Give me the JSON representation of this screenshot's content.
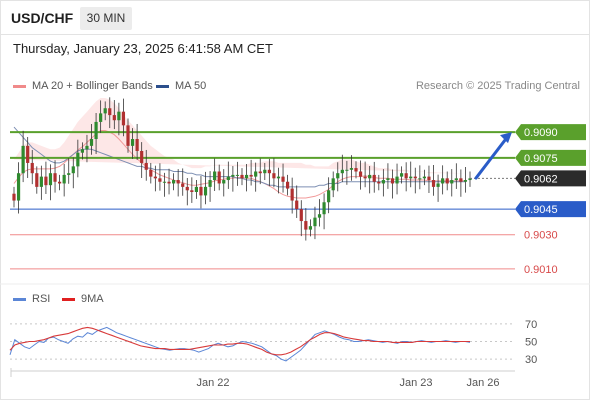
{
  "header": {
    "symbol": "USD/CHF",
    "timeframe": "30 MIN"
  },
  "timestamp": "Thursday, January 23, 2025 6:41:58 AM CET",
  "legend": {
    "ma20": {
      "label": "MA 20 + Bollinger Bands",
      "color": "#f08a8a"
    },
    "ma50": {
      "label": "MA 50",
      "color": "#2c4f8c"
    },
    "research": "Research © 2025 Trading Central"
  },
  "rsi_legend": {
    "rsi": {
      "label": "RSI",
      "color": "#5b86d6"
    },
    "ma": {
      "label": "9MA",
      "color": "#e02020"
    }
  },
  "colors": {
    "green": "#5aa02c",
    "blue": "#2a5cc8",
    "red": "#f08a8a",
    "band": "#fde3e3",
    "bull": "#2f8a2f",
    "bear": "#b03030"
  },
  "chart_data": [
    {
      "type": "candlestick",
      "ylim": [
        0.9,
        0.911
      ],
      "price_tag": "0.9062",
      "levels": [
        {
          "label": "0.9090",
          "value": 0.909,
          "style": "resistance"
        },
        {
          "label": "0.9075",
          "value": 0.9075,
          "style": "resistance"
        },
        {
          "label": "0.9045",
          "value": 0.9045,
          "style": "pivot"
        },
        {
          "label": "0.9030",
          "value": 0.903,
          "style": "support"
        },
        {
          "label": "0.9010",
          "value": 0.901,
          "style": "support"
        }
      ],
      "forecast_arrow": {
        "from": 0.9062,
        "to": 0.909
      },
      "closes": [
        0.905,
        0.9066,
        0.9082,
        0.9072,
        0.9066,
        0.9058,
        0.9064,
        0.9059,
        0.9066,
        0.9061,
        0.906,
        0.9065,
        0.9066,
        0.907,
        0.9078,
        0.908,
        0.9082,
        0.9086,
        0.9096,
        0.9101,
        0.9104,
        0.91,
        0.9097,
        0.9102,
        0.9094,
        0.9082,
        0.9086,
        0.9079,
        0.9072,
        0.9068,
        0.9064,
        0.9063,
        0.9061,
        0.9061,
        0.906,
        0.9062,
        0.906,
        0.9058,
        0.9056,
        0.9055,
        0.9058,
        0.9053,
        0.9058,
        0.9062,
        0.9067,
        0.906,
        0.9062,
        0.9064,
        0.9065,
        0.9065,
        0.9063,
        0.9065,
        0.9064,
        0.9067,
        0.9066,
        0.9068,
        0.9066,
        0.9063,
        0.9064,
        0.9061,
        0.9057,
        0.905,
        0.9045,
        0.9038,
        0.9033,
        0.9035,
        0.904,
        0.9042,
        0.9049,
        0.9056,
        0.9063,
        0.9066,
        0.9068,
        0.9068,
        0.9069,
        0.9067,
        0.9064,
        0.9063,
        0.9065,
        0.9061,
        0.906,
        0.9062,
        0.9063,
        0.906,
        0.9064,
        0.9066,
        0.9063,
        0.9064,
        0.9063,
        0.9063,
        0.9064,
        0.9062,
        0.9058,
        0.906,
        0.9063,
        0.906,
        0.9062,
        0.9063,
        0.9061,
        0.9062,
        0.9063
      ],
      "ma50": [
        0.9093,
        0.909,
        0.9087,
        0.9084,
        0.9081,
        0.9079,
        0.9077,
        0.9075,
        0.9073,
        0.9072,
        0.9072,
        0.9073,
        0.9075,
        0.9077,
        0.9079,
        0.908,
        0.908,
        0.908,
        0.9079,
        0.9078,
        0.9077,
        0.9076,
        0.9075,
        0.9074,
        0.9073,
        0.9072,
        0.9071,
        0.907,
        0.907,
        0.9069,
        0.9069,
        0.9068,
        0.9068,
        0.9068,
        0.9068,
        0.9067,
        0.9067,
        0.9067,
        0.9066,
        0.9066,
        0.9065,
        0.9065,
        0.9064,
        0.9064,
        0.9064,
        0.9064,
        0.9064,
        0.9064,
        0.9064,
        0.9063,
        0.9063,
        0.9062,
        0.9062,
        0.9061,
        0.9061,
        0.906,
        0.9059,
        0.9059,
        0.9058,
        0.9058,
        0.9058,
        0.9058,
        0.9058,
        0.9058,
        0.9058,
        0.9058,
        0.9058,
        0.9059,
        0.9059,
        0.906,
        0.906,
        0.906,
        0.9061,
        0.9061,
        0.9061,
        0.9061,
        0.9061,
        0.9061,
        0.9061,
        0.9061,
        0.9061,
        0.9061,
        0.9061,
        0.9061,
        0.9061,
        0.9061,
        0.9061,
        0.9061,
        0.9061,
        0.9061,
        0.9061,
        0.9061,
        0.9061,
        0.9061,
        0.9061,
        0.9061,
        0.9061,
        0.9061,
        0.9061,
        0.9061
      ],
      "bb_upper": [
        0.9074,
        0.9078,
        0.9082,
        0.9084,
        0.9084,
        0.9083,
        0.9082,
        0.9081,
        0.908,
        0.908,
        0.9081,
        0.9084,
        0.9088,
        0.9092,
        0.9096,
        0.9099,
        0.9102,
        0.9105,
        0.9108,
        0.911,
        0.911,
        0.9109,
        0.9107,
        0.9104,
        0.91,
        0.9097,
        0.9094,
        0.9091,
        0.9088,
        0.9085,
        0.9082,
        0.908,
        0.9078,
        0.9076,
        0.9075,
        0.9074,
        0.9072,
        0.9071,
        0.907,
        0.9069,
        0.9069,
        0.9069,
        0.907,
        0.907,
        0.9071,
        0.9071,
        0.9071,
        0.9071,
        0.9071,
        0.9071,
        0.9071,
        0.9071,
        0.9072,
        0.9072,
        0.9072,
        0.9073,
        0.9073,
        0.9073,
        0.9072,
        0.9072,
        0.9072,
        0.9072,
        0.9072,
        0.9072,
        0.9071,
        0.9071,
        0.907,
        0.907,
        0.907,
        0.907,
        0.9072,
        0.9073,
        0.9074,
        0.9074,
        0.9074,
        0.9073,
        0.9072,
        0.9072,
        0.9071,
        0.907,
        0.9069,
        0.9069,
        0.9069,
        0.9068,
        0.9068,
        0.9068,
        0.9068,
        0.9067,
        0.9067,
        0.9067,
        0.9067,
        0.9066,
        0.9066,
        0.9066,
        0.9066,
        0.9066,
        0.9066,
        0.9066,
        0.9066,
        0.9066
      ],
      "bb_lower": [
        0.9046,
        0.9049,
        0.9051,
        0.9052,
        0.9053,
        0.9054,
        0.9055,
        0.9056,
        0.9057,
        0.9058,
        0.9059,
        0.906,
        0.9061,
        0.9062,
        0.9063,
        0.9064,
        0.9066,
        0.9068,
        0.907,
        0.9072,
        0.9072,
        0.9071,
        0.907,
        0.9068,
        0.9066,
        0.9063,
        0.906,
        0.9058,
        0.9056,
        0.9055,
        0.9054,
        0.9053,
        0.9052,
        0.9052,
        0.9051,
        0.905,
        0.905,
        0.905,
        0.9049,
        0.9049,
        0.9049,
        0.905,
        0.905,
        0.9051,
        0.9052,
        0.9053,
        0.9054,
        0.9055,
        0.9055,
        0.9056,
        0.9056,
        0.9055,
        0.9054,
        0.9052,
        0.905,
        0.9047,
        0.9044,
        0.9041,
        0.9038,
        0.9035,
        0.9033,
        0.9032,
        0.9031,
        0.9031,
        0.9032,
        0.9033,
        0.9035,
        0.9037,
        0.904,
        0.9043,
        0.9046,
        0.9049,
        0.9051,
        0.9053,
        0.9054,
        0.9055,
        0.9056,
        0.9057,
        0.9057,
        0.9057,
        0.9057,
        0.9057,
        0.9057,
        0.9057,
        0.9057,
        0.9057,
        0.9057,
        0.9057,
        0.9057,
        0.9057,
        0.9057,
        0.9057,
        0.9057,
        0.9057,
        0.9057,
        0.9057,
        0.9057,
        0.9057,
        0.9057,
        0.9057
      ]
    },
    {
      "type": "line",
      "ylim": [
        20,
        80
      ],
      "ticks": [
        {
          "label": "70",
          "value": 70
        },
        {
          "label": "50",
          "value": 50
        },
        {
          "label": "30",
          "value": 30
        }
      ],
      "rsi": [
        35,
        52,
        48,
        44,
        42,
        46,
        50,
        49,
        54,
        55,
        52,
        50,
        48,
        53,
        56,
        55,
        60,
        58,
        62,
        64,
        66,
        63,
        60,
        58,
        56,
        54,
        52,
        50,
        48,
        46,
        44,
        42,
        41,
        40,
        41,
        42,
        42,
        41,
        40,
        38,
        40,
        42,
        46,
        48,
        46,
        44,
        45,
        48,
        50,
        49,
        48,
        46,
        44,
        40,
        36,
        34,
        30,
        28,
        32,
        36,
        40,
        46,
        52,
        58,
        60,
        62,
        60,
        58,
        55,
        53,
        52,
        50,
        50,
        51,
        52,
        51,
        50,
        49,
        50,
        49,
        48,
        50,
        50,
        49,
        50,
        51,
        50,
        49,
        50,
        50,
        51,
        50,
        49,
        50,
        50,
        49
      ],
      "ma": [
        40,
        46,
        48,
        49,
        50,
        50,
        51,
        52,
        54,
        56,
        57,
        58,
        59,
        61,
        63,
        65,
        66,
        65,
        63,
        61,
        59,
        57,
        55,
        53,
        51,
        49,
        47,
        45,
        44,
        43,
        42,
        42,
        42,
        41,
        41,
        41,
        41,
        41,
        42,
        43,
        44,
        45,
        46,
        46,
        46,
        47,
        47,
        48,
        48,
        47,
        45,
        43,
        41,
        38,
        36,
        35,
        35,
        36,
        38,
        41,
        44,
        48,
        52,
        55,
        58,
        60,
        60,
        59,
        57,
        55,
        54,
        53,
        52,
        51,
        51,
        50,
        50,
        50,
        50,
        49,
        49,
        49,
        49,
        49,
        50,
        50,
        50,
        50,
        50,
        50,
        50,
        50,
        50,
        50,
        50,
        50
      ],
      "x_labels": [
        "Jan 22",
        "Jan 23",
        "Jan 26"
      ]
    }
  ]
}
